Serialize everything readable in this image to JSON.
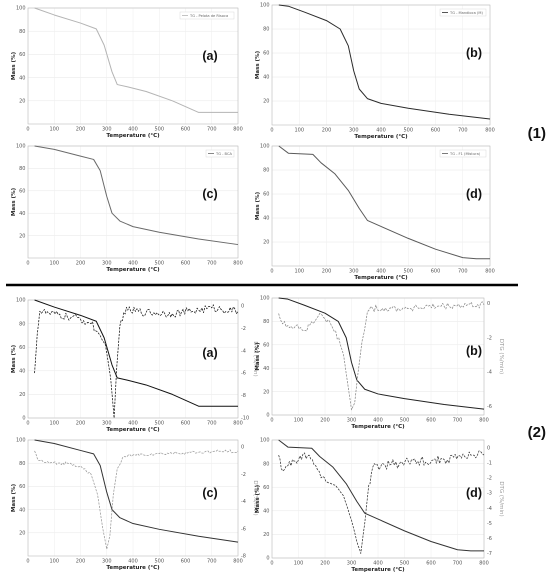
{
  "groups": [
    {
      "label": "(1)"
    },
    {
      "label": "(2)"
    }
  ],
  "chart_data": [
    {
      "type": "line",
      "panel": "(a)",
      "group": "(1)",
      "xlabel": "Temperature (°C)",
      "ylabel": "Mass (%)",
      "xlim": [
        0,
        800
      ],
      "ylim": [
        0,
        100
      ],
      "xticks": [
        0,
        100,
        200,
        300,
        400,
        500,
        600,
        700,
        800
      ],
      "yticks": [
        20,
        40,
        60,
        80,
        100
      ],
      "legend": "TG - Pelota de Risoca",
      "legend_position": "top-right",
      "grid": true,
      "series": [
        {
          "name": "TG - Pelota de Risoca",
          "color": "#b4b4b4",
          "dash": false,
          "x": [
            25,
            100,
            200,
            260,
            290,
            320,
            340,
            380,
            450,
            550,
            650,
            800
          ],
          "y": [
            100,
            94,
            87,
            82,
            68,
            45,
            34,
            32,
            28,
            20,
            10,
            10
          ]
        }
      ]
    },
    {
      "type": "line",
      "panel": "(b)",
      "group": "(1)",
      "xlabel": "Temperature (°C)",
      "ylabel": "Mass (%)",
      "xlim": [
        0,
        800
      ],
      "ylim": [
        0,
        100
      ],
      "xticks": [
        0,
        100,
        200,
        300,
        400,
        500,
        600,
        700,
        800
      ],
      "yticks": [
        20,
        40,
        60,
        80,
        100
      ],
      "legend": "TG - Mandioca (M)",
      "legend_position": "top-right",
      "grid": true,
      "series": [
        {
          "name": "TG - Mandioca (M)",
          "color": "#2b2b2b",
          "dash": false,
          "x": [
            25,
            60,
            120,
            200,
            250,
            280,
            300,
            320,
            350,
            400,
            500,
            650,
            800
          ],
          "y": [
            100,
            99,
            94,
            87,
            80,
            66,
            45,
            30,
            22,
            18,
            14,
            9,
            5
          ]
        }
      ]
    },
    {
      "type": "line",
      "panel": "(c)",
      "group": "(1)",
      "xlabel": "Temperature (°C)",
      "ylabel": "Mass (%)",
      "xlim": [
        0,
        800
      ],
      "ylim": [
        0,
        100
      ],
      "xticks": [
        0,
        100,
        200,
        300,
        400,
        500,
        600,
        700,
        800
      ],
      "yticks": [
        20,
        40,
        60,
        80,
        100
      ],
      "legend": "TG - BCA",
      "legend_position": "top-right",
      "grid": true,
      "series": [
        {
          "name": "TG - BCA",
          "color": "#6a6a6a",
          "dash": false,
          "x": [
            25,
            100,
            200,
            250,
            275,
            300,
            320,
            350,
            400,
            500,
            650,
            800
          ],
          "y": [
            100,
            97,
            91,
            88,
            78,
            55,
            40,
            33,
            28,
            23,
            17,
            12
          ]
        }
      ]
    },
    {
      "type": "line",
      "panel": "(d)",
      "group": "(1)",
      "xlabel": "Temperature (°C)",
      "ylabel": "Mass (%)",
      "xlim": [
        0,
        800
      ],
      "ylim": [
        0,
        100
      ],
      "xticks": [
        0,
        100,
        200,
        300,
        400,
        500,
        600,
        700,
        800
      ],
      "yticks": [
        20,
        40,
        60,
        80,
        100
      ],
      "legend": "TG - F1 (Mistura)",
      "legend_position": "top-right",
      "grid": true,
      "series": [
        {
          "name": "TG - F1 (Mistura)",
          "color": "#5a5a5a",
          "dash": false,
          "x": [
            25,
            60,
            150,
            180,
            230,
            280,
            320,
            350,
            400,
            500,
            600,
            700,
            750,
            800
          ],
          "y": [
            100,
            94,
            93,
            86,
            77,
            63,
            48,
            38,
            33,
            23,
            14,
            7,
            6,
            6
          ]
        }
      ]
    },
    {
      "type": "line",
      "panel": "(a)",
      "group": "(2)",
      "xlabel": "Temperature (°C)",
      "ylabel": "Mass (%)",
      "y2label": "DTG (%/min)",
      "xlim": [
        0,
        800
      ],
      "ylim": [
        0,
        100
      ],
      "y2lim": [
        -10,
        0.5
      ],
      "xticks": [
        0,
        100,
        200,
        300,
        400,
        500,
        600,
        700,
        800
      ],
      "yticks": [
        0,
        20,
        40,
        60,
        80,
        100
      ],
      "y2ticks": [
        0,
        -2,
        -4,
        -6,
        -8,
        -10
      ],
      "grid": true,
      "series": [
        {
          "axis": "y",
          "color": "#111111",
          "dash": false,
          "x": [
            25,
            100,
            200,
            260,
            290,
            320,
            340,
            380,
            450,
            550,
            650,
            800
          ],
          "y": [
            100,
            94,
            87,
            82,
            68,
            45,
            34,
            32,
            28,
            20,
            10,
            10
          ]
        },
        {
          "axis": "y2",
          "color": "#111111",
          "dash": true,
          "noise": 0.35,
          "x": [
            25,
            35,
            45,
            80,
            150,
            200,
            240,
            270,
            295,
            315,
            328,
            338,
            350,
            365,
            380,
            450,
            550,
            650,
            700,
            800
          ],
          "y": [
            -6,
            -2.6,
            -0.5,
            -0.7,
            -1,
            -1.2,
            -1.6,
            -2.5,
            -3.5,
            -6.5,
            -10,
            -5.5,
            -1.8,
            -0.6,
            -0.4,
            -0.6,
            -0.7,
            -0.4,
            -0.2,
            -0.5
          ]
        }
      ]
    },
    {
      "type": "line",
      "panel": "(b)",
      "group": "(2)",
      "xlabel": "Temperature (°C)",
      "ylabel": "Mass (%)",
      "y2label": "DTG (%/min)",
      "xlim": [
        0,
        800
      ],
      "ylim": [
        0,
        100
      ],
      "y2lim": [
        -6.5,
        0.3
      ],
      "xticks": [
        0,
        100,
        200,
        300,
        400,
        500,
        600,
        700,
        800
      ],
      "yticks": [
        0,
        20,
        40,
        60,
        80,
        100
      ],
      "y2ticks": [
        0,
        -2,
        -4,
        -6
      ],
      "grid": true,
      "series": [
        {
          "axis": "y",
          "color": "#222222",
          "dash": false,
          "x": [
            25,
            60,
            120,
            200,
            250,
            280,
            300,
            320,
            350,
            400,
            500,
            650,
            800
          ],
          "y": [
            100,
            99,
            94,
            87,
            80,
            66,
            45,
            30,
            22,
            18,
            14,
            9,
            5
          ]
        },
        {
          "axis": "y2",
          "color": "#888888",
          "dash": true,
          "noise": 0.2,
          "x": [
            25,
            40,
            60,
            90,
            120,
            160,
            180,
            200,
            240,
            270,
            285,
            300,
            312,
            325,
            340,
            360,
            380,
            500,
            650,
            800
          ],
          "y": [
            -0.6,
            -1.2,
            -1.3,
            -1.3,
            -1.6,
            -1.1,
            -0.6,
            -0.9,
            -1.6,
            -3,
            -4.6,
            -6.2,
            -5.8,
            -4,
            -2.2,
            -0.5,
            -0.3,
            -0.3,
            -0.2,
            -0.1
          ]
        }
      ]
    },
    {
      "type": "line",
      "panel": "(c)",
      "group": "(2)",
      "xlabel": "Temperature (°C)",
      "ylabel": "Mass (%)",
      "y2label": "DTG (%/min)",
      "xlim": [
        0,
        800
      ],
      "ylim": [
        0,
        100
      ],
      "y2lim": [
        -8,
        0.5
      ],
      "xticks": [
        0,
        100,
        200,
        300,
        400,
        500,
        600,
        700,
        800
      ],
      "yticks": [
        20,
        40,
        60,
        80,
        100
      ],
      "y2ticks": [
        0,
        -2,
        -4,
        -6,
        -8
      ],
      "grid": true,
      "series": [
        {
          "axis": "y",
          "color": "#333333",
          "dash": false,
          "x": [
            25,
            100,
            200,
            250,
            275,
            300,
            320,
            350,
            400,
            500,
            650,
            800
          ],
          "y": [
            100,
            97,
            91,
            88,
            78,
            55,
            40,
            33,
            28,
            23,
            17,
            12
          ]
        },
        {
          "axis": "y2",
          "color": "#999999",
          "dash": true,
          "noise": 0.12,
          "x": [
            25,
            40,
            80,
            150,
            200,
            240,
            265,
            285,
            300,
            312,
            325,
            340,
            360,
            400,
            500,
            650,
            800
          ],
          "y": [
            -0.3,
            -1,
            -1.2,
            -1.2,
            -1.4,
            -2,
            -3.5,
            -6,
            -7.5,
            -6.5,
            -3.5,
            -1.6,
            -0.8,
            -0.6,
            -0.5,
            -0.4,
            -0.3
          ]
        }
      ]
    },
    {
      "type": "line",
      "panel": "(d)",
      "group": "(2)",
      "xlabel": "Temperature (°C)",
      "ylabel": "Mass (%)",
      "y2label": "DTG (%/min)",
      "xlim": [
        0,
        800
      ],
      "ylim": [
        0,
        100
      ],
      "y2lim": [
        -7.3,
        0.5
      ],
      "xticks": [
        0,
        100,
        200,
        300,
        400,
        500,
        600,
        700,
        800
      ],
      "yticks": [
        0,
        20,
        40,
        60,
        80,
        100
      ],
      "y2ticks": [
        0,
        -1,
        -2,
        -3,
        -4,
        -5,
        -6,
        -7
      ],
      "grid": true,
      "series": [
        {
          "axis": "y",
          "color": "#333333",
          "dash": false,
          "x": [
            25,
            60,
            150,
            180,
            230,
            280,
            320,
            350,
            400,
            500,
            600,
            700,
            750,
            800
          ],
          "y": [
            100,
            94,
            93,
            86,
            77,
            63,
            48,
            38,
            33,
            23,
            14,
            7,
            6,
            6
          ]
        },
        {
          "axis": "y2",
          "color": "#333333",
          "dash": true,
          "noise": 0.3,
          "x": [
            25,
            35,
            60,
            100,
            140,
            165,
            185,
            210,
            240,
            270,
            300,
            320,
            335,
            350,
            365,
            380,
            450,
            550,
            650,
            750,
            800
          ],
          "y": [
            -0.5,
            -1.4,
            -1.2,
            -0.8,
            -0.5,
            -1.2,
            -2,
            -2.3,
            -2.5,
            -3.2,
            -4.8,
            -6.2,
            -7,
            -5,
            -2.5,
            -1.3,
            -1.1,
            -0.9,
            -0.8,
            -0.5,
            -0.5
          ]
        }
      ]
    }
  ]
}
